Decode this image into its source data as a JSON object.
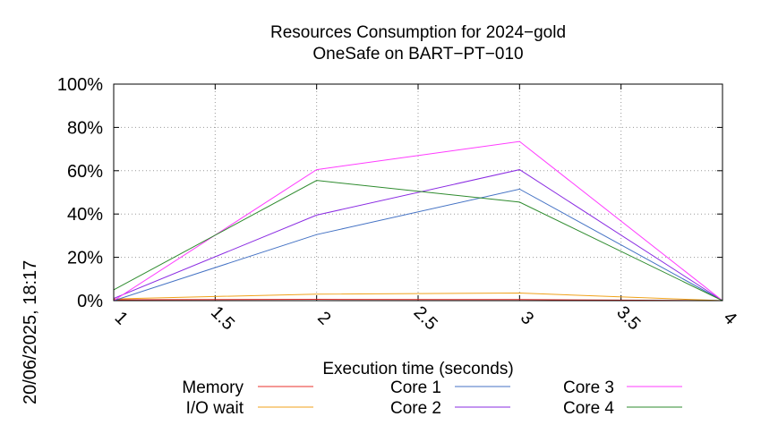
{
  "chart_data": {
    "type": "line",
    "title": "Resources Consumption for 2024−gold",
    "subtitle": "OneSafe on BART−PT−010",
    "timestamp": "20/06/2025, 18:17",
    "xlabel": "Execution time (seconds)",
    "ylabel": "",
    "x": [
      1,
      2,
      3,
      4
    ],
    "xlim": [
      1,
      4
    ],
    "ylim": [
      0,
      100
    ],
    "x_ticks": [
      "1",
      "1.5",
      "2",
      "2.5",
      "3",
      "3.5",
      "4"
    ],
    "y_ticks": [
      "0%",
      "20%",
      "40%",
      "60%",
      "80%",
      "100%"
    ],
    "grid": true,
    "legend_position": "bottom",
    "series": [
      {
        "name": "Memory",
        "color": "#e8312b",
        "values": [
          0.4,
          0.6,
          0.5,
          0
        ]
      },
      {
        "name": "I/O wait",
        "color": "#f0a21a",
        "values": [
          0.8,
          3.0,
          3.5,
          0
        ]
      },
      {
        "name": "Core 1",
        "color": "#4472c4",
        "values": [
          0,
          30.5,
          51.5,
          0
        ]
      },
      {
        "name": "Core 2",
        "color": "#8a2be2",
        "values": [
          1,
          39.5,
          60.5,
          0
        ]
      },
      {
        "name": "Core 3",
        "color": "#ff3bff",
        "values": [
          0,
          60.5,
          73.5,
          0
        ]
      },
      {
        "name": "Core 4",
        "color": "#2e8b2e",
        "values": [
          5.0,
          55.5,
          45.5,
          0
        ]
      }
    ]
  }
}
